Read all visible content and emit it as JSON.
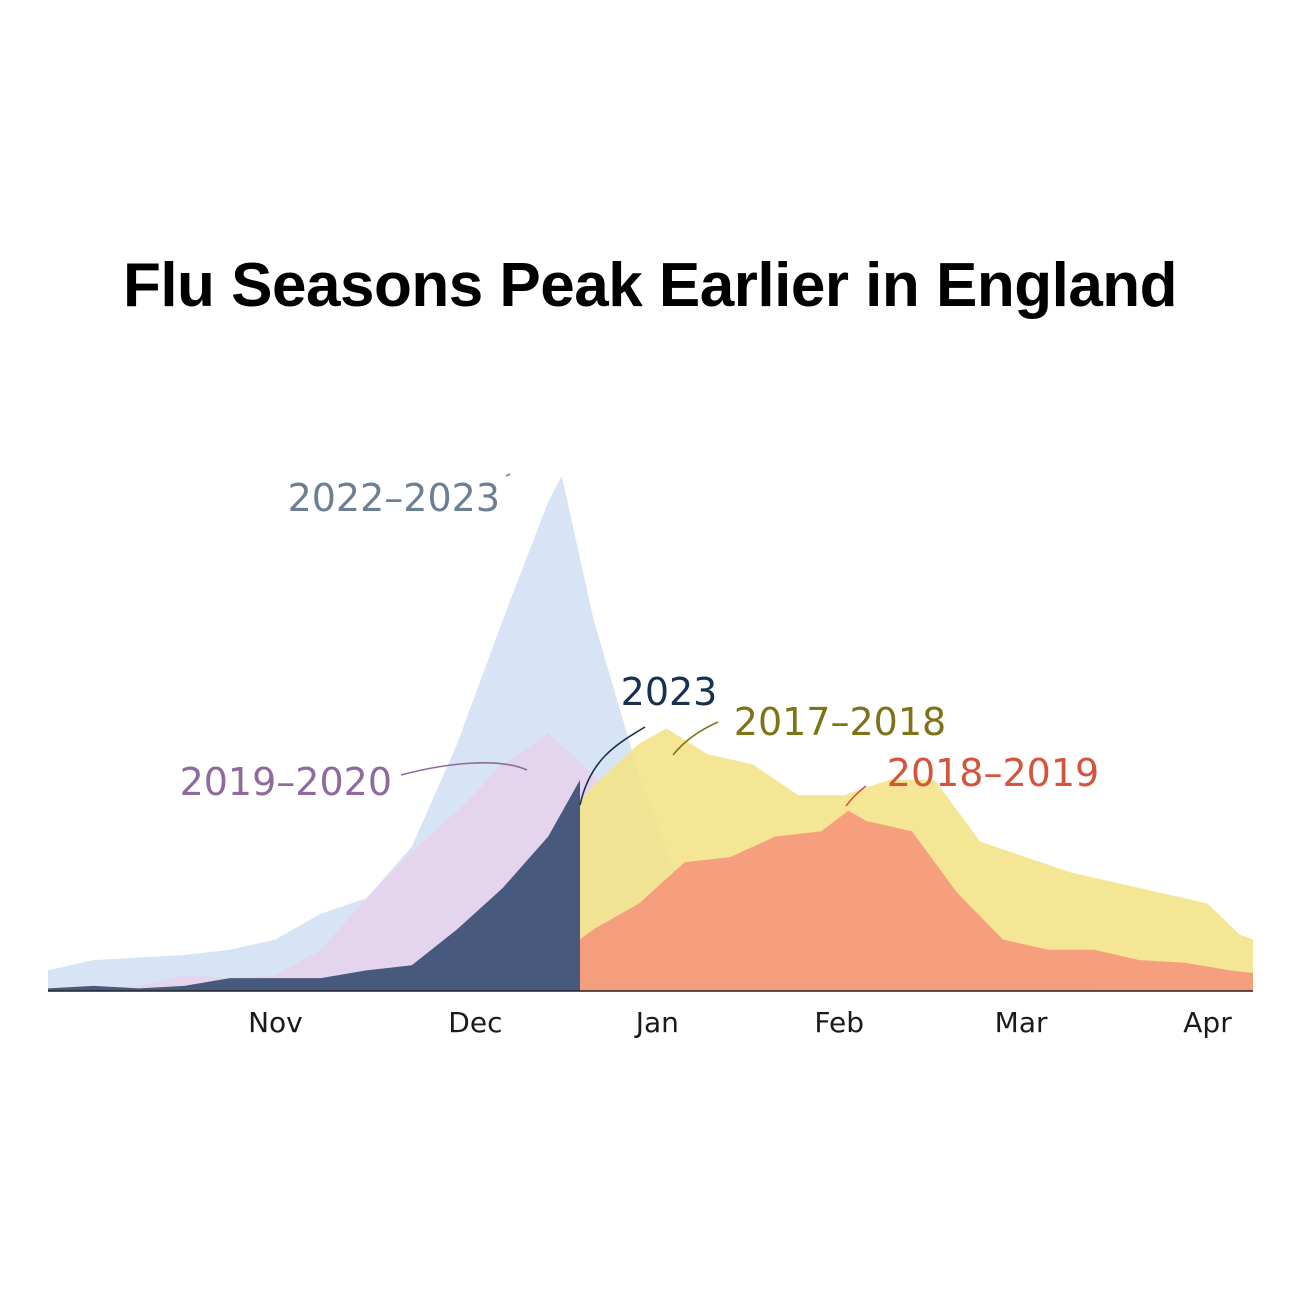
{
  "chart_data": {
    "type": "area",
    "title": "Flu Seasons Peak Earlier in England",
    "xlabel": "",
    "ylabel": "",
    "x_unit": "week of season (week 0 = first week shown, approx. early October)",
    "x_tick_labels": [
      {
        "label": "Nov",
        "week": 5
      },
      {
        "label": "Dec",
        "week": 9.4
      },
      {
        "label": "Jan",
        "week": 13.4
      },
      {
        "label": "Feb",
        "week": 17.4
      },
      {
        "label": "Mar",
        "week": 21.4
      },
      {
        "label": "Apr",
        "week": 25.5
      }
    ],
    "xlim": [
      0,
      26.5
    ],
    "ylim": [
      0,
      100
    ],
    "y_axis_shown": false,
    "grid": false,
    "legend": "none (series labeled directly on chart)",
    "series": [
      {
        "name": "2022–2023",
        "color": "#d6e4f5",
        "label_color": "#6c7f93",
        "x": [
          0,
          1,
          2,
          3,
          4,
          5,
          6,
          7,
          8,
          9,
          10,
          11,
          11.3,
          12,
          13,
          14,
          15,
          16,
          17,
          18,
          19,
          20,
          21,
          22,
          23
        ],
        "y": [
          4,
          6,
          6.5,
          7,
          8,
          10,
          15,
          18,
          28,
          48,
          72,
          95,
          100,
          72,
          42,
          18,
          10,
          9.5,
          8,
          6,
          8,
          7,
          6,
          6,
          5
        ]
      },
      {
        "name": "2019–2020",
        "color": "#e7d2ec",
        "label_color": "#8e6a9e",
        "x": [
          0,
          1,
          2,
          3,
          4,
          5,
          6,
          7,
          8,
          9,
          10,
          11,
          12,
          13,
          14,
          15,
          16,
          17,
          18,
          19,
          20,
          21,
          22,
          23
        ],
        "y": [
          0,
          0.5,
          1,
          3,
          2.5,
          3,
          8,
          18,
          27,
          35,
          44,
          50,
          42,
          28,
          18,
          12,
          9,
          7,
          6,
          5,
          4.5,
          4,
          3.5,
          3
        ]
      },
      {
        "name": "2017–2018",
        "color": "#f3e38a",
        "label_color": "#7e7417",
        "x": [
          0,
          1,
          2,
          3,
          4,
          5,
          6,
          7,
          8,
          9,
          10,
          11,
          12,
          13,
          13.6,
          14.5,
          15.5,
          16.5,
          17.5,
          18.5,
          19.5,
          20.5,
          21.5,
          22.5,
          23.5,
          24.5,
          25.5,
          26.2,
          26.5
        ],
        "y": [
          0,
          0,
          0,
          0.5,
          0.5,
          1,
          1.5,
          2.5,
          4,
          7,
          15,
          30,
          40,
          48,
          51,
          46,
          44,
          38,
          38,
          41,
          41,
          29,
          26,
          23,
          21,
          19,
          17,
          11,
          10
        ]
      },
      {
        "name": "2018–2019",
        "color": "#f5927a",
        "label_color": "#d4543c",
        "x": [
          0,
          1,
          2,
          3,
          4,
          5,
          6,
          7,
          8,
          9,
          10,
          11,
          12,
          13,
          14,
          15,
          16,
          17,
          17.6,
          18,
          19,
          20,
          21,
          22,
          23,
          24,
          25,
          26,
          26.5
        ],
        "y": [
          0,
          0,
          0,
          0,
          0.5,
          0.5,
          0.5,
          1,
          2,
          3,
          4.5,
          5.5,
          12,
          17,
          25,
          26,
          30,
          31,
          35,
          33,
          31,
          19,
          10,
          8,
          8,
          6,
          5.5,
          4,
          3.5
        ]
      },
      {
        "name": "2023",
        "color": "#475a7e",
        "label_color": "#16324f",
        "x": [
          0,
          1,
          2,
          3,
          4,
          5,
          6,
          7,
          8,
          9,
          10,
          11,
          11.7
        ],
        "y": [
          0.5,
          1,
          0.5,
          1,
          2.5,
          2.5,
          2.5,
          4,
          5,
          12,
          20,
          30,
          41
        ]
      }
    ],
    "annotations": [
      {
        "text": "2022–2023",
        "series": "2022–2023"
      },
      {
        "text": "2019–2020",
        "series": "2019–2020"
      },
      {
        "text": "2023",
        "series": "2023"
      },
      {
        "text": "2017–2018",
        "series": "2017–2018"
      },
      {
        "text": "2018–2019",
        "series": "2018–2019"
      }
    ]
  }
}
